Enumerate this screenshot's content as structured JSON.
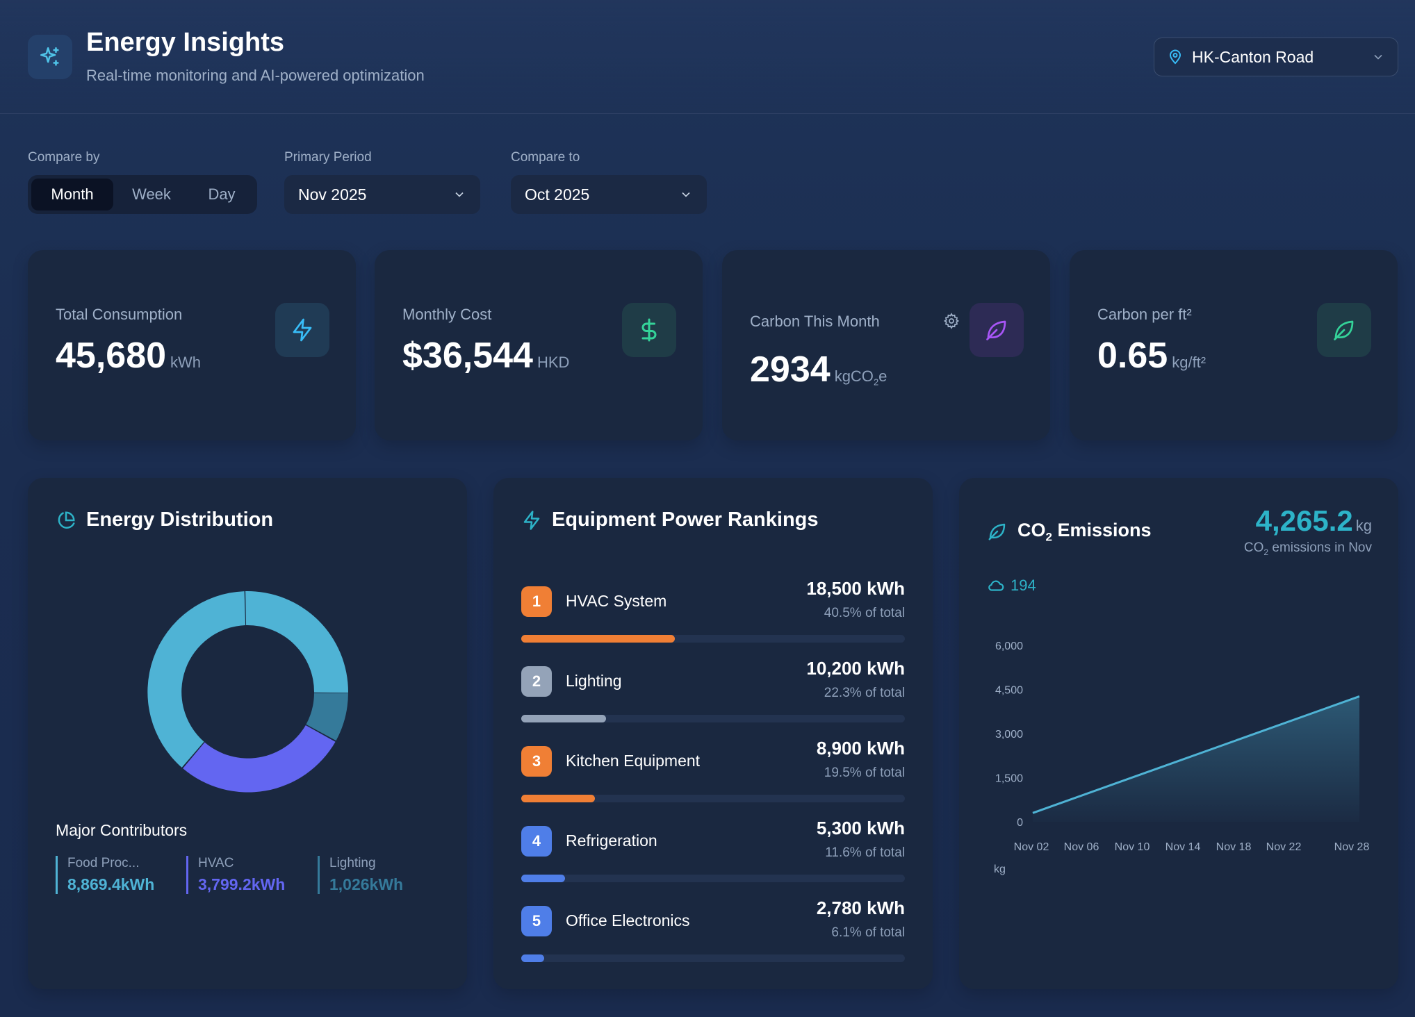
{
  "header": {
    "title": "Energy Insights",
    "subtitle": "Real-time monitoring and AI-powered optimization",
    "site": "HK-Canton Road"
  },
  "controls": {
    "compare_by_label": "Compare by",
    "compare_by_options": [
      "Month",
      "Week",
      "Day"
    ],
    "compare_by_selected": "Month",
    "primary_label": "Primary Period",
    "primary_value": "Nov 2025",
    "compare_label": "Compare to",
    "compare_value": "Oct 2025"
  },
  "stats": [
    {
      "label": "Total Consumption",
      "value": "45,680",
      "unit": "kWh",
      "icon": "lightning-icon",
      "color": "#38bdf8"
    },
    {
      "label": "Monthly Cost",
      "value": "$36,544",
      "unit": "HKD",
      "icon": "dollar-icon",
      "color": "#34d399"
    },
    {
      "label": "Carbon This Month",
      "value": "2934",
      "unit_main": "kgCO",
      "unit_sub": "2",
      "unit_tail": "e",
      "icon": "leaf-icon",
      "color": "#a855f7"
    },
    {
      "label": "Carbon per ft²",
      "value": "0.65",
      "unit": "kg/ft²",
      "icon": "leaf-icon",
      "color": "#34d399"
    }
  ],
  "distribution": {
    "title": "Energy Distribution",
    "contributors_title": "Major Contributors",
    "contributors": [
      {
        "name": "Food Proc...",
        "value": "8,869.4kWh",
        "color": "#4fb3d5"
      },
      {
        "name": "HVAC",
        "value": "3,799.2kWh",
        "color": "#6366f1"
      },
      {
        "name": "Lighting",
        "value": "1,026kWh",
        "color": "#357a9a"
      }
    ],
    "colors": [
      "#4fb3d5",
      "#6366f1",
      "#357a9a"
    ]
  },
  "rankings": {
    "title": "Equipment Power Rankings",
    "items": [
      {
        "rank": "1",
        "name": "HVAC System",
        "value": "18,500 kWh",
        "pct": "40.5% of total",
        "fraction": 0.405,
        "color": "#f07f35"
      },
      {
        "rank": "2",
        "name": "Lighting",
        "value": "10,200 kWh",
        "pct": "22.3% of total",
        "fraction": 0.223,
        "color": "#94a3b8"
      },
      {
        "rank": "3",
        "name": "Kitchen Equipment",
        "value": "8,900 kWh",
        "pct": "19.5% of total",
        "fraction": 0.195,
        "color": "#f07f35"
      },
      {
        "rank": "4",
        "name": "Refrigeration",
        "value": "5,300 kWh",
        "pct": "11.6% of total",
        "fraction": 0.116,
        "color": "#4f7ee8"
      },
      {
        "rank": "5",
        "name": "Office Electronics",
        "value": "2,780 kWh",
        "pct": "6.1% of total",
        "fraction": 0.061,
        "color": "#4f7ee8"
      }
    ]
  },
  "emissions": {
    "title_main": "CO",
    "title_sub": "2",
    "title_tail": " Emissions",
    "total": "4,265.2",
    "total_unit": "kg",
    "sub_main": "CO",
    "sub_sub": "2",
    "sub_tail": " emissions in Nov",
    "badge": "194",
    "unit_label": "kg"
  },
  "chart_data": {
    "type": "area",
    "x": [
      "Nov 02",
      "Nov 28"
    ],
    "xticks": [
      "Nov 02",
      "Nov 06",
      "Nov 10",
      "Nov 14",
      "Nov 18",
      "Nov 22",
      "Nov 28"
    ],
    "yticks": [
      "0",
      "1,500",
      "3,000",
      "4,500",
      "6,000"
    ],
    "ylim": [
      0,
      6000
    ],
    "series": [
      {
        "values": [
          300,
          4265
        ]
      }
    ],
    "ylabel": "kg",
    "grid": false,
    "color": "#4fb3d5"
  }
}
